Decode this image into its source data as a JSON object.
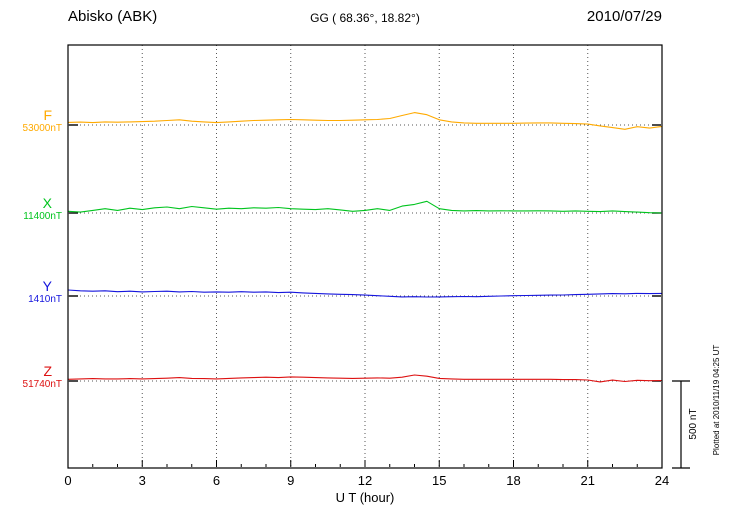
{
  "chart_data": {
    "type": "line",
    "station": "Abisko (ABK)",
    "coordinates": "GG ( 68.36°, 18.82°)",
    "date": "2010/07/29",
    "xlabel": "U T (hour)",
    "x_range": [
      0,
      24
    ],
    "x_ticks": [
      0,
      3,
      6,
      9,
      12,
      15,
      18,
      21,
      24
    ],
    "x_step_hours": 0.5,
    "grid": "dotted vertical gridlines every 3 hours; dotted horizontal baseline per component",
    "scale_bar": {
      "label": "500 nT",
      "nT": 500
    },
    "footer_note": "Plotted at 2010/11/19 04:25 UT",
    "values_unit": "nT offset from component baseline",
    "series": [
      {
        "name": "F",
        "baseline_label": "53000nT",
        "baseline_nT": 53000,
        "color": "#ffaa00",
        "values": [
          15,
          17,
          14,
          18,
          16,
          18,
          20,
          22,
          26,
          30,
          22,
          18,
          14,
          18,
          22,
          26,
          28,
          30,
          32,
          30,
          28,
          26,
          26,
          28,
          30,
          32,
          38,
          55,
          72,
          60,
          30,
          18,
          12,
          10,
          10,
          10,
          10,
          11,
          12,
          12,
          10,
          8,
          5,
          -5,
          -15,
          -25,
          -10,
          -18,
          -8
        ]
      },
      {
        "name": "X",
        "baseline_label": "11400nT",
        "baseline_nT": 11400,
        "color": "#00c41e",
        "values": [
          10,
          5,
          15,
          25,
          15,
          28,
          20,
          30,
          35,
          25,
          38,
          30,
          22,
          28,
          25,
          30,
          28,
          32,
          25,
          22,
          20,
          25,
          18,
          10,
          15,
          25,
          15,
          40,
          50,
          68,
          25,
          15,
          12,
          14,
          12,
          13,
          12,
          12,
          13,
          12,
          10,
          12,
          10,
          8,
          12,
          8,
          5,
          2,
          0
        ]
      },
      {
        "name": "Y",
        "baseline_label": "1410nT",
        "baseline_nT": 1410,
        "color": "#1515dd",
        "values": [
          35,
          30,
          28,
          30,
          25,
          28,
          24,
          26,
          28,
          24,
          26,
          22,
          24,
          22,
          25,
          22,
          24,
          20,
          22,
          18,
          15,
          12,
          10,
          8,
          5,
          2,
          -2,
          -5,
          -4,
          -6,
          -5,
          -4,
          -3,
          -4,
          -2,
          0,
          2,
          3,
          4,
          5,
          6,
          8,
          10,
          12,
          14,
          13,
          15,
          14,
          15
        ]
      },
      {
        "name": "Z",
        "baseline_label": "51740nT",
        "baseline_nT": 51740,
        "color": "#dd1111",
        "values": [
          10,
          12,
          14,
          12,
          12,
          14,
          12,
          14,
          16,
          20,
          15,
          14,
          12,
          15,
          18,
          20,
          22,
          20,
          24,
          22,
          20,
          18,
          16,
          15,
          16,
          18,
          16,
          22,
          35,
          28,
          15,
          12,
          10,
          10,
          10,
          10,
          10,
          10,
          10,
          10,
          8,
          8,
          6,
          -5,
          5,
          -3,
          4,
          2,
          3
        ]
      }
    ]
  }
}
